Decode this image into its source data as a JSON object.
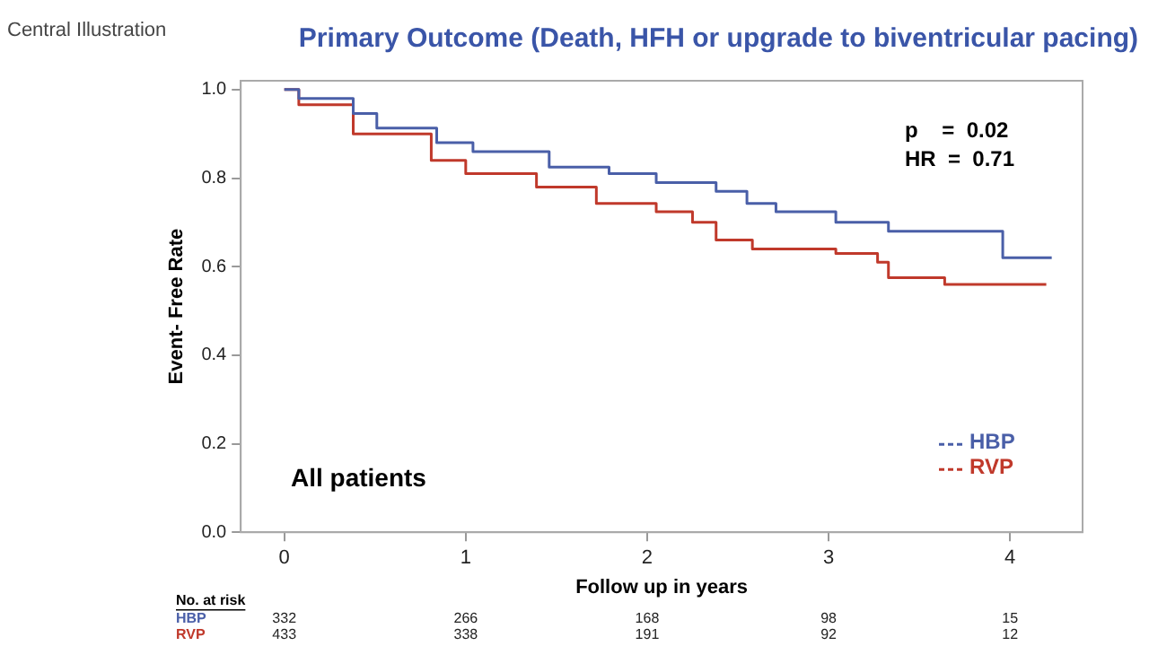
{
  "chart_data": {
    "type": "step",
    "title": "Primary Outcome (Death, HFH or upgrade to biventricular pacing)",
    "xlabel": "Follow up in years",
    "ylabel": "Event- Free Rate",
    "xlim": [
      -0.24,
      4.4
    ],
    "xticks": [
      0,
      1,
      2,
      3,
      4
    ],
    "ylim": [
      0,
      1.02
    ],
    "yticks": [
      {
        "value": 0,
        "label": "0.0"
      },
      0.2,
      0.4,
      0.6,
      0.8,
      {
        "value": 1,
        "label": "1.0"
      }
    ],
    "grid": false,
    "legend": "bottom right",
    "marker": "none",
    "line_style": "solid",
    "series": [
      {
        "name": "HBP",
        "color": "#4a5fa8",
        "x": [
          0,
          0.08,
          0.38,
          0.51,
          0.84,
          1.04,
          1.33,
          1.46,
          1.79,
          2.05,
          2.38,
          2.55,
          2.71,
          3.04,
          3.33,
          3.94,
          3.96,
          4.23
        ],
        "values": [
          1.0,
          0.98,
          0.946,
          0.913,
          0.88,
          0.86,
          0.86,
          0.825,
          0.81,
          0.79,
          0.77,
          0.743,
          0.724,
          0.7,
          0.68,
          0.68,
          0.62,
          0.62
        ]
      },
      {
        "name": "RVP",
        "color": "#c0392b",
        "x": [
          0,
          0.08,
          0.38,
          0.81,
          1.0,
          1.39,
          1.72,
          2.05,
          2.25,
          2.38,
          2.58,
          3.04,
          3.27,
          3.33,
          3.63,
          3.64,
          4.2
        ],
        "values": [
          1.0,
          0.966,
          0.9,
          0.84,
          0.81,
          0.78,
          0.743,
          0.724,
          0.7,
          0.66,
          0.64,
          0.63,
          0.61,
          0.575,
          0.575,
          0.56,
          0.56
        ]
      }
    ],
    "annotations": [
      "Central Illustration",
      "p    =  0.02",
      "HR  =  0.71",
      "All patients",
      "No. at risk",
      "332",
      "266",
      "168",
      "98",
      "15",
      "433",
      "338",
      "191",
      "92",
      "12"
    ]
  }
}
